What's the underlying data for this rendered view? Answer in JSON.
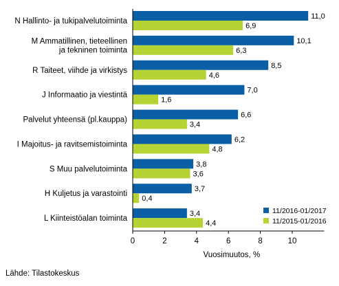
{
  "chart_data": {
    "type": "bar",
    "orientation": "horizontal",
    "categories": [
      [
        "N Hallinto- ja tukipalvelutoiminta"
      ],
      [
        "M Ammatillinen, tieteellinen",
        "ja tekninen toiminta"
      ],
      [
        "R Taiteet, viihde ja virkistys"
      ],
      [
        "J Informaatio ja viestintä"
      ],
      [
        "Palvelut yhteensä (pl.kauppa)"
      ],
      [
        "I Majoitus- ja ravitsemistoiminta"
      ],
      [
        "S Muu palvelutoiminta"
      ],
      [
        "H Kuljetus ja varastointi"
      ],
      [
        "L Kiinteistöalan toiminta"
      ]
    ],
    "series": [
      {
        "name": "11/2016-01/2017",
        "color": "#0b5fa5",
        "values": [
          11.0,
          10.1,
          8.5,
          7.0,
          6.6,
          6.2,
          3.8,
          3.7,
          3.4
        ],
        "labels": [
          "11,0",
          "10,1",
          "8,5",
          "7,0",
          "6,6",
          "6,2",
          "3,8",
          "3,7",
          "3,4"
        ]
      },
      {
        "name": "11/2015-01/2016",
        "color": "#b5d335",
        "values": [
          6.9,
          6.3,
          4.6,
          1.6,
          3.4,
          4.8,
          3.6,
          0.4,
          4.4
        ],
        "labels": [
          "6,9",
          "6,3",
          "4,6",
          "1,6",
          "3,4",
          "4,8",
          "3,6",
          "0,4",
          "4,4"
        ]
      }
    ],
    "xlabel": "Vuosimuutos, %",
    "xlim": [
      0,
      12
    ],
    "xticks": [
      0,
      2,
      4,
      6,
      8,
      10
    ],
    "grid": false,
    "legend_position": "bottom-right"
  },
  "footer": {
    "source": "Lähde: Tilastokeskus"
  }
}
